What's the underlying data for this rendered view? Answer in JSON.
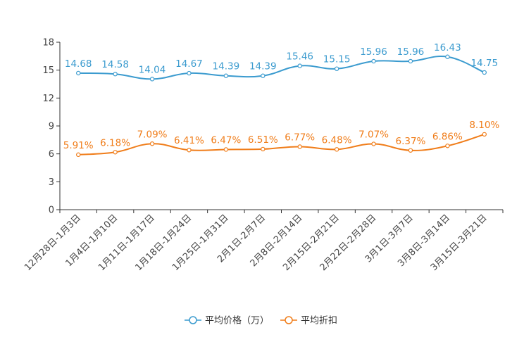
{
  "chart_data": {
    "type": "line",
    "categories": [
      "12月28日-1月3日",
      "1月4日-1月10日",
      "1月11日-1月17日",
      "1月18日-1月24日",
      "1月25日-1月31日",
      "2月1日-2月7日",
      "2月8日-2月14日",
      "2月15日-2月21日",
      "2月22日-2月28日",
      "3月1日-3月7日",
      "3月8日-3月14日",
      "3月15日-3月21日"
    ],
    "ylim": [
      0,
      18
    ],
    "yticks": [
      0,
      3,
      6,
      9,
      12,
      15,
      18
    ],
    "series": [
      {
        "name": "平均价格（万）",
        "color": "#3b9bcf",
        "values": [
          14.68,
          14.58,
          14.04,
          14.67,
          14.39,
          14.39,
          15.46,
          15.15,
          15.96,
          15.96,
          16.43,
          14.75
        ],
        "labels": [
          "14.68",
          "14.58",
          "14.04",
          "14.67",
          "14.39",
          "14.39",
          "15.46",
          "15.15",
          "15.96",
          "15.96",
          "16.43",
          "14.75"
        ]
      },
      {
        "name": "平均折扣",
        "color": "#f07d1a",
        "values": [
          5.91,
          6.18,
          7.09,
          6.41,
          6.47,
          6.51,
          6.77,
          6.48,
          7.07,
          6.37,
          6.86,
          8.1
        ],
        "labels": [
          "5.91%",
          "6.18%",
          "7.09%",
          "6.41%",
          "6.47%",
          "6.51%",
          "6.77%",
          "6.48%",
          "7.07%",
          "6.37%",
          "6.86%",
          "8.10%"
        ]
      }
    ],
    "legend_position": "bottom-center"
  }
}
